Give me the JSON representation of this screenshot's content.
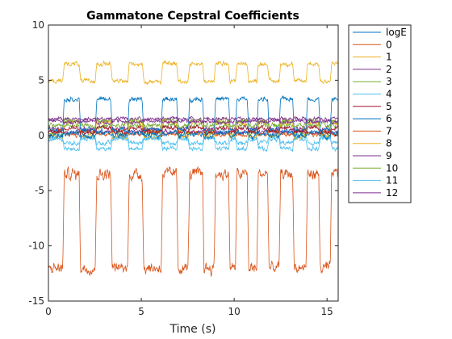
{
  "chart_data": {
    "type": "line",
    "title": "Gammatone Cepstral Coefficients",
    "xlabel": "Time (s)",
    "ylabel": "",
    "xlim": [
      0,
      15.6
    ],
    "ylim": [
      -15,
      10
    ],
    "xticks": [
      0,
      5,
      10,
      15
    ],
    "xtick_labels": [
      "0",
      "5",
      "10",
      "15"
    ],
    "yticks": [
      10,
      5,
      0,
      -5,
      -10,
      -15
    ],
    "ytick_labels": [
      "10",
      "5",
      "0",
      "-5",
      "-10",
      "-15"
    ],
    "grid": false,
    "legend_position": "outside-right",
    "speech_segments": [
      [
        0.85,
        1.65
      ],
      [
        2.6,
        3.35
      ],
      [
        4.35,
        5.05
      ],
      [
        6.15,
        6.9
      ],
      [
        7.6,
        8.3
      ],
      [
        9.0,
        9.7
      ],
      [
        10.15,
        10.7
      ],
      [
        11.3,
        11.8
      ],
      [
        12.5,
        13.15
      ],
      [
        13.95,
        14.55
      ],
      [
        15.25,
        15.6
      ]
    ],
    "series": [
      {
        "name": "logE",
        "color": "#0072bd",
        "base": 0.0,
        "speech": 0.25,
        "noise": 0.15
      },
      {
        "name": "0",
        "color": "#d95319",
        "base": -12.0,
        "speech": 8.5,
        "noise": 0.3
      },
      {
        "name": "1",
        "color": "#edb120",
        "base": 4.9,
        "speech": 1.6,
        "noise": 0.12
      },
      {
        "name": "2",
        "color": "#7e2f8e",
        "base": 1.5,
        "speech": -0.3,
        "noise": 0.1
      },
      {
        "name": "3",
        "color": "#77ac30",
        "base": 0.9,
        "speech": 0.4,
        "noise": 0.12
      },
      {
        "name": "4",
        "color": "#4dbeee",
        "base": -0.3,
        "speech": -0.9,
        "noise": 0.12
      },
      {
        "name": "5",
        "color": "#a2142f",
        "base": 0.3,
        "speech": 0.4,
        "noise": 0.12
      },
      {
        "name": "6",
        "color": "#0072bd",
        "base": 0.5,
        "speech": 2.8,
        "noise": 0.12
      },
      {
        "name": "7",
        "color": "#d95319",
        "base": 0.4,
        "speech": -0.3,
        "noise": 0.12
      },
      {
        "name": "8",
        "color": "#edb120",
        "base": -0.1,
        "speech": 1.3,
        "noise": 0.12
      },
      {
        "name": "9",
        "color": "#7e2f8e",
        "base": 0.6,
        "speech": -0.3,
        "noise": 0.12
      },
      {
        "name": "10",
        "color": "#77ac30",
        "base": 0.2,
        "speech": 0.7,
        "noise": 0.12
      },
      {
        "name": "11",
        "color": "#4dbeee",
        "base": -0.2,
        "speech": -0.5,
        "noise": 0.12
      },
      {
        "name": "12",
        "color": "#7e2f8e",
        "base": 1.3,
        "speech": 0.2,
        "noise": 0.1
      }
    ]
  }
}
